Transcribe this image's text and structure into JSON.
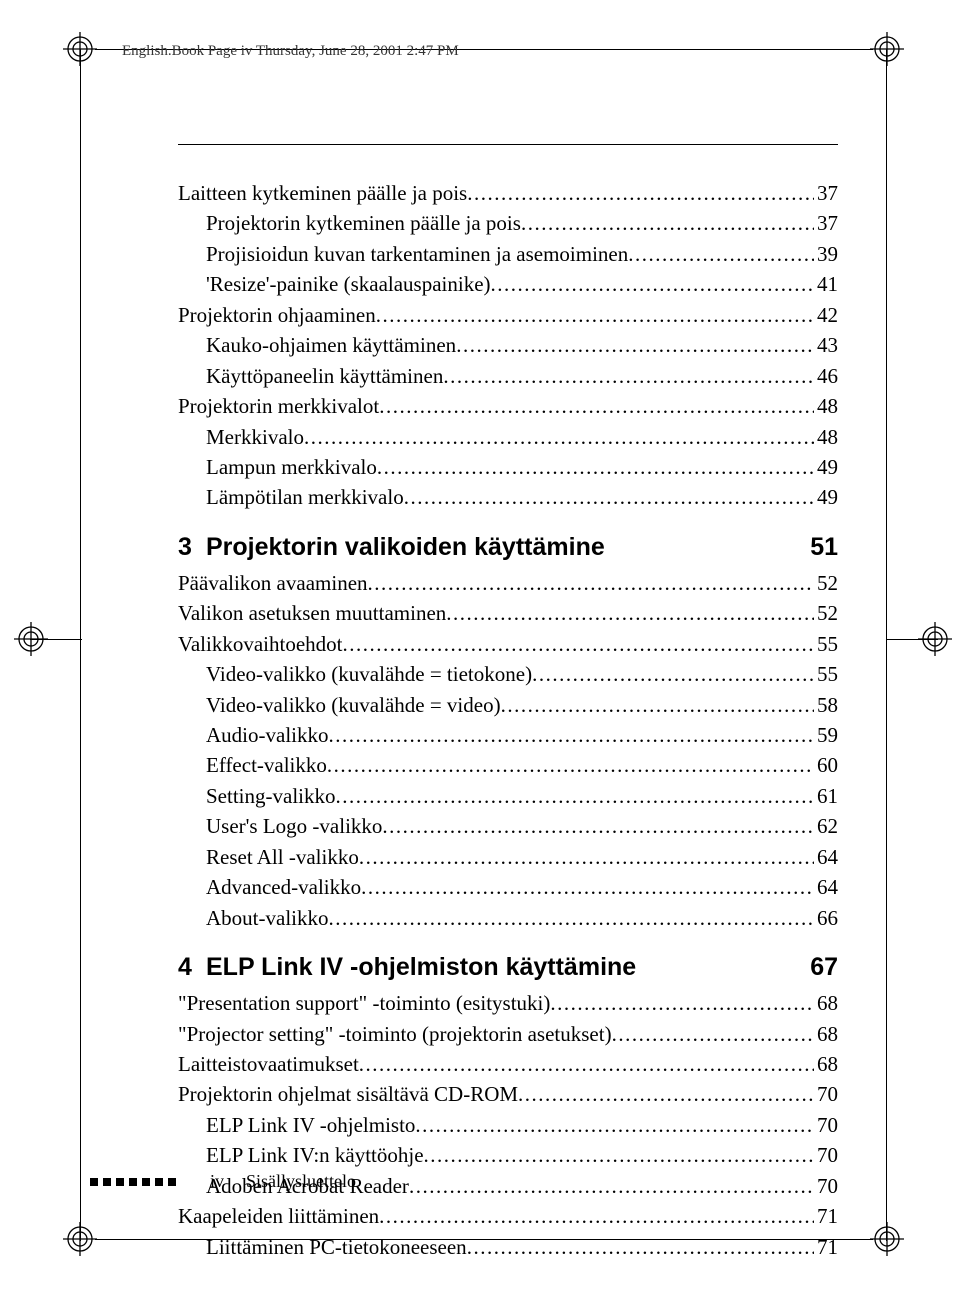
{
  "header": "English.Book  Page iv  Thursday, June 28, 2001  2:47 PM",
  "entries_top": [
    {
      "text": "Laitteen kytkeminen päälle ja pois",
      "page": "37",
      "indent": 0
    },
    {
      "text": "Projektorin kytkeminen päälle ja pois",
      "page": "37",
      "indent": 1
    },
    {
      "text": "Projisioidun kuvan tarkentaminen ja asemoiminen",
      "page": "39",
      "indent": 1
    },
    {
      "text": "'Resize'-painike (skaalauspainike)",
      "page": "41",
      "indent": 1
    },
    {
      "text": "Projektorin ohjaaminen",
      "page": "42",
      "indent": 0
    },
    {
      "text": "Kauko-ohjaimen käyttäminen",
      "page": "43",
      "indent": 1
    },
    {
      "text": "Käyttöpaneelin käyttäminen",
      "page": "46",
      "indent": 1
    },
    {
      "text": "Projektorin merkkivalot",
      "page": "48",
      "indent": 0
    },
    {
      "text": "Merkkivalo",
      "page": "48",
      "indent": 1
    },
    {
      "text": "Lampun merkkivalo",
      "page": "49",
      "indent": 1
    },
    {
      "text": "Lämpötilan merkkivalo",
      "page": "49",
      "indent": 1
    }
  ],
  "section3": {
    "num": "3",
    "title": "Projektorin valikoiden käyttämine",
    "page": "51"
  },
  "entries_s3": [
    {
      "text": "Päävalikon avaaminen",
      "page": "52",
      "indent": 0
    },
    {
      "text": "Valikon asetuksen muuttaminen",
      "page": "52",
      "indent": 0
    },
    {
      "text": "Valikkovaihtoehdot",
      "page": "55",
      "indent": 0
    },
    {
      "text": "Video-valikko (kuvalähde = tietokone)",
      "page": "55",
      "indent": 1
    },
    {
      "text": "Video-valikko (kuvalähde = video)",
      "page": "58",
      "indent": 1
    },
    {
      "text": "Audio-valikko",
      "page": "59",
      "indent": 1
    },
    {
      "text": "Effect-valikko",
      "page": "60",
      "indent": 1
    },
    {
      "text": "Setting-valikko",
      "page": "61",
      "indent": 1
    },
    {
      "text": "User's Logo -valikko",
      "page": "62",
      "indent": 1
    },
    {
      "text": "Reset All -valikko",
      "page": "64",
      "indent": 1
    },
    {
      "text": "Advanced-valikko",
      "page": "64",
      "indent": 1
    },
    {
      "text": "About-valikko",
      "page": "66",
      "indent": 1
    }
  ],
  "section4": {
    "num": "4",
    "title": "ELP Link IV -ohjelmiston käyttämine",
    "page": "67"
  },
  "entries_s4": [
    {
      "text": "\"Presentation support\" -toiminto (esitystuki)",
      "page": "68",
      "indent": 0
    },
    {
      "text": "\"Projector setting\" -toiminto (projektorin asetukset)",
      "page": "68",
      "indent": 0
    },
    {
      "text": "Laitteistovaatimukset",
      "page": "68",
      "indent": 0
    },
    {
      "text": "Projektorin ohjelmat sisältävä CD-ROM",
      "page": "70",
      "indent": 0
    },
    {
      "text": "ELP Link IV -ohjelmisto",
      "page": "70",
      "indent": 1
    },
    {
      "text": "ELP Link IV:n käyttöohje",
      "page": "70",
      "indent": 1
    },
    {
      "text": "Adoben Acrobat Reader",
      "page": "70",
      "indent": 1
    },
    {
      "text": "Kaapeleiden liittäminen",
      "page": "71",
      "indent": 0
    },
    {
      "text": "Liittäminen PC-tietokoneeseen",
      "page": "71",
      "indent": 1
    }
  ],
  "footer": {
    "pagenum": "iv",
    "label": "Sisällysluettelo"
  }
}
